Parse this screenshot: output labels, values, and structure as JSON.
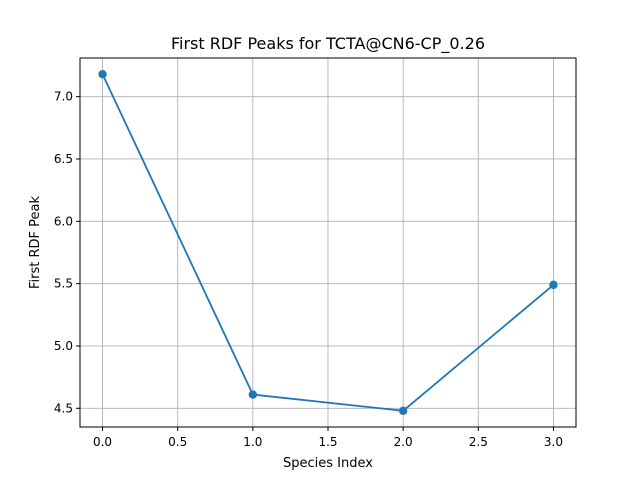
{
  "chart_data": {
    "type": "line",
    "title": "First RDF Peaks for TCTA@CN6-CP_0.26",
    "xlabel": "Species Index",
    "ylabel": "First RDF Peak",
    "x": [
      0,
      1,
      2,
      3
    ],
    "series": [
      {
        "values": [
          7.18,
          4.61,
          4.48,
          5.49
        ],
        "color": "#1f77b4",
        "marker": "circle"
      }
    ],
    "xlim": [
      -0.15,
      3.15
    ],
    "ylim": [
      4.35,
      7.31
    ],
    "xticks": [
      0.0,
      0.5,
      1.0,
      1.5,
      2.0,
      2.5,
      3.0
    ],
    "xtick_labels": [
      "0.0",
      "0.5",
      "1.0",
      "1.5",
      "2.0",
      "2.5",
      "3.0"
    ],
    "yticks": [
      4.5,
      5.0,
      5.5,
      6.0,
      6.5,
      7.0
    ],
    "ytick_labels": [
      "4.5",
      "5.0",
      "5.5",
      "6.0",
      "6.5",
      "7.0"
    ],
    "grid": true,
    "legend": "none"
  }
}
